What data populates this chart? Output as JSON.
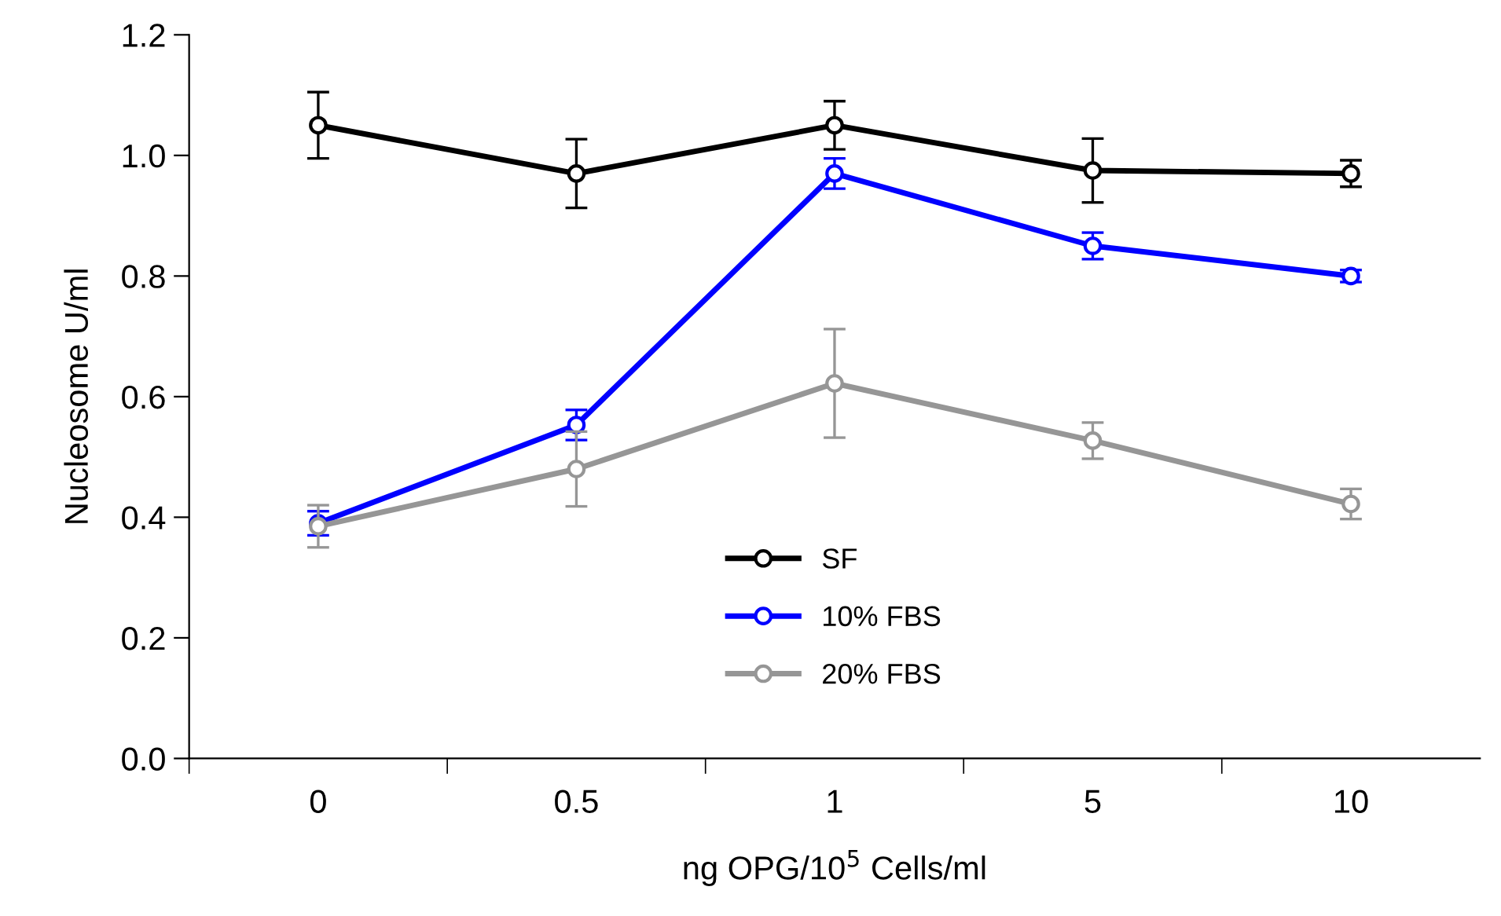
{
  "chart_data": {
    "type": "line",
    "xlabel": "ng OPG/10$^{5}$ Cells/ml",
    "ylabel": "Nucleosome U/ml",
    "categories": [
      "0",
      "0.5",
      "1",
      "5",
      "10"
    ],
    "series": [
      {
        "name": "SF",
        "color": "#000000",
        "values": [
          1.05,
          0.97,
          1.05,
          0.975,
          0.97
        ],
        "errors": [
          0.055,
          0.057,
          0.04,
          0.053,
          0.022
        ]
      },
      {
        "name": "10% FBS",
        "color": "#0000ff",
        "values": [
          0.39,
          0.553,
          0.97,
          0.85,
          0.8
        ],
        "errors": [
          0.02,
          0.025,
          0.025,
          0.022,
          0.01
        ]
      },
      {
        "name": "20% FBS",
        "color": "#969696",
        "values": [
          0.385,
          0.48,
          0.622,
          0.527,
          0.422
        ],
        "errors": [
          0.035,
          0.062,
          0.09,
          0.03,
          0.025
        ]
      }
    ],
    "ylim": [
      0,
      1.2
    ],
    "yticks": [
      {
        "value": 0,
        "label": "0.0"
      },
      {
        "value": 0.2,
        "label": "0.2"
      },
      {
        "value": 0.4,
        "label": "0.4"
      },
      {
        "value": 0.6,
        "label": "0.6"
      },
      {
        "value": 0.8,
        "label": "0.8"
      },
      {
        "value": 1.0,
        "label": "1.0"
      },
      {
        "value": 1.2,
        "label": "1.2"
      }
    ],
    "marker": "circle",
    "line_style": "solid",
    "legend": "bottom",
    "grid": false
  }
}
